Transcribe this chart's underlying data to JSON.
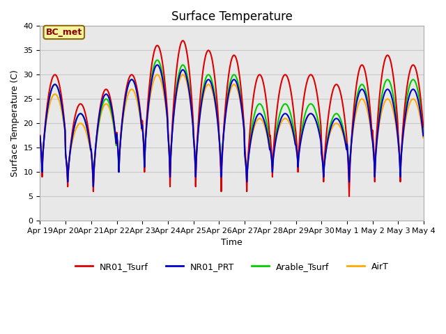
{
  "title": "Surface Temperature",
  "ylabel": "Surface Temperature (C)",
  "xlabel": "Time",
  "ylim": [
    0,
    40
  ],
  "yticks": [
    0,
    5,
    10,
    15,
    20,
    25,
    30,
    35,
    40
  ],
  "annotation_text": "BC_met",
  "plot_bg_color": "#e8e8e8",
  "fig_bg_color": "#ffffff",
  "series": {
    "NR01_Tsurf": {
      "color": "#dd0000",
      "lw": 1.5,
      "zorder": 4
    },
    "NR01_PRT": {
      "color": "#0000cc",
      "lw": 1.5,
      "zorder": 5
    },
    "Arable_Tsurf": {
      "color": "#00cc00",
      "lw": 1.5,
      "zorder": 3
    },
    "AirT": {
      "color": "#ffaa00",
      "lw": 1.5,
      "zorder": 2
    }
  },
  "num_days": 15,
  "samples_per_day": 48,
  "xtick_labels": [
    "Apr 19",
    "Apr 20",
    "Apr 21",
    "Apr 22",
    "Apr 23",
    "Apr 24",
    "Apr 25",
    "Apr 26",
    "Apr 27",
    "Apr 28",
    "Apr 29",
    "Apr 30",
    "May 1",
    "May 2",
    "May 3",
    "May 4"
  ],
  "red_peaks": [
    30,
    24,
    27,
    30,
    36,
    37,
    35,
    34,
    30,
    30,
    30,
    28,
    32,
    34,
    32
  ],
  "red_mins": [
    9,
    7,
    6,
    10,
    10,
    7,
    7,
    6,
    6,
    9,
    10,
    8,
    5,
    8,
    8
  ],
  "prt_peaks": [
    28,
    22,
    26,
    29,
    32,
    31,
    29,
    29,
    22,
    22,
    22,
    21,
    27,
    27,
    27
  ],
  "prt_mins": [
    10,
    8,
    7,
    10,
    11,
    9,
    9,
    9,
    8,
    10,
    11,
    9,
    8,
    9,
    9
  ],
  "grn_peaks": [
    28,
    22,
    25,
    29,
    33,
    32,
    30,
    30,
    24,
    24,
    24,
    22,
    28,
    29,
    29
  ],
  "grn_mins": [
    10,
    8,
    7,
    10,
    11,
    9,
    9,
    9,
    8,
    10,
    11,
    9,
    8,
    9,
    9
  ],
  "air_peaks": [
    26,
    20,
    24,
    27,
    30,
    30,
    28,
    28,
    21,
    21,
    22,
    20,
    25,
    25,
    25
  ],
  "air_mins": [
    11,
    9,
    8,
    11,
    12,
    10,
    10,
    10,
    9,
    11,
    12,
    10,
    9,
    10,
    10
  ],
  "peak_hour": 14.0,
  "min_hour": 5.0,
  "sharp_factor": 3.0,
  "grid_color": "#c8c8c8",
  "grid_lw": 0.8,
  "legend_fontsize": 9,
  "title_fontsize": 12,
  "label_fontsize": 9,
  "tick_fontsize": 8
}
